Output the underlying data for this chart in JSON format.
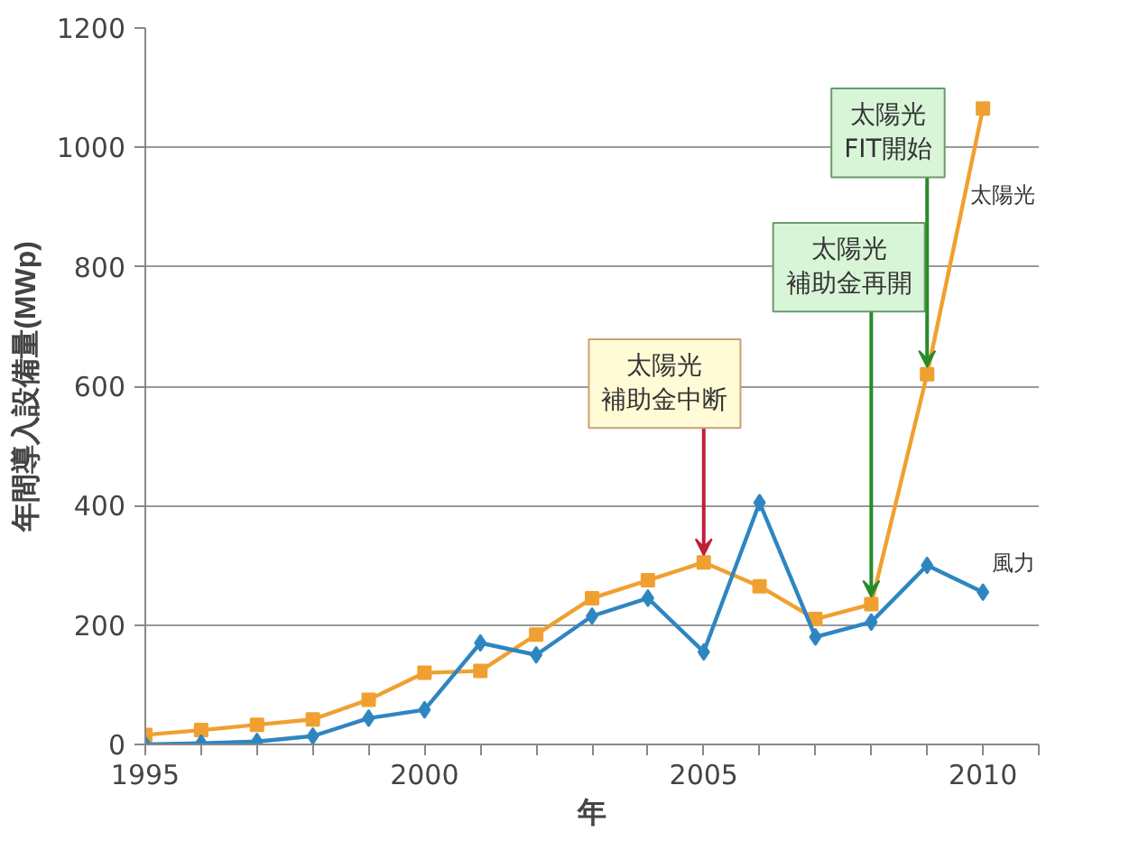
{
  "chart_data": {
    "type": "line",
    "xlabel": "年",
    "ylabel": "年間導入設備量(MWp)",
    "x": [
      1995,
      1996,
      1997,
      1998,
      1999,
      2000,
      2001,
      2002,
      2003,
      2004,
      2005,
      2006,
      2007,
      2008,
      2009,
      2010
    ],
    "series": [
      {
        "name": "太陽光",
        "color": "#f0a030",
        "marker": "square",
        "values": [
          16,
          24,
          33,
          42,
          75,
          120,
          123,
          184,
          245,
          275,
          305,
          265,
          210,
          235,
          620,
          1065
        ]
      },
      {
        "name": "風力",
        "color": "#2e86c1",
        "marker": "diamond",
        "values": [
          0,
          2,
          5,
          14,
          44,
          58,
          170,
          150,
          215,
          245,
          155,
          405,
          180,
          205,
          300,
          255
        ]
      }
    ],
    "xlim": [
      1995,
      2011
    ],
    "ylim": [
      0,
      1200
    ],
    "xticks": [
      1995,
      {
        "value": 1996,
        "label": null
      },
      {
        "value": 1997,
        "label": null
      },
      {
        "value": 1998,
        "label": null
      },
      {
        "value": 1999,
        "label": null
      },
      2000,
      {
        "value": 2001,
        "label": null
      },
      {
        "value": 2002,
        "label": null
      },
      {
        "value": 2003,
        "label": null
      },
      {
        "value": 2004,
        "label": null
      },
      2005,
      {
        "value": 2006,
        "label": null
      },
      {
        "value": 2007,
        "label": null
      },
      {
        "value": 2008,
        "label": null
      },
      {
        "value": 2009,
        "label": null
      },
      2010,
      {
        "value": 2011,
        "label": null
      }
    ],
    "yticks": [
      0,
      200,
      400,
      600,
      800,
      1000,
      1200
    ],
    "grid": "y",
    "legend": false,
    "line_style": "solid",
    "annotations": [
      {
        "text": "太陽光補助金中断",
        "x": 2005,
        "y": 305
      },
      {
        "text": "太陽光補助金再開",
        "x": 2008,
        "y": 235
      },
      {
        "text": "太陽光FIT開始",
        "x": 2009,
        "y": 620
      }
    ]
  }
}
